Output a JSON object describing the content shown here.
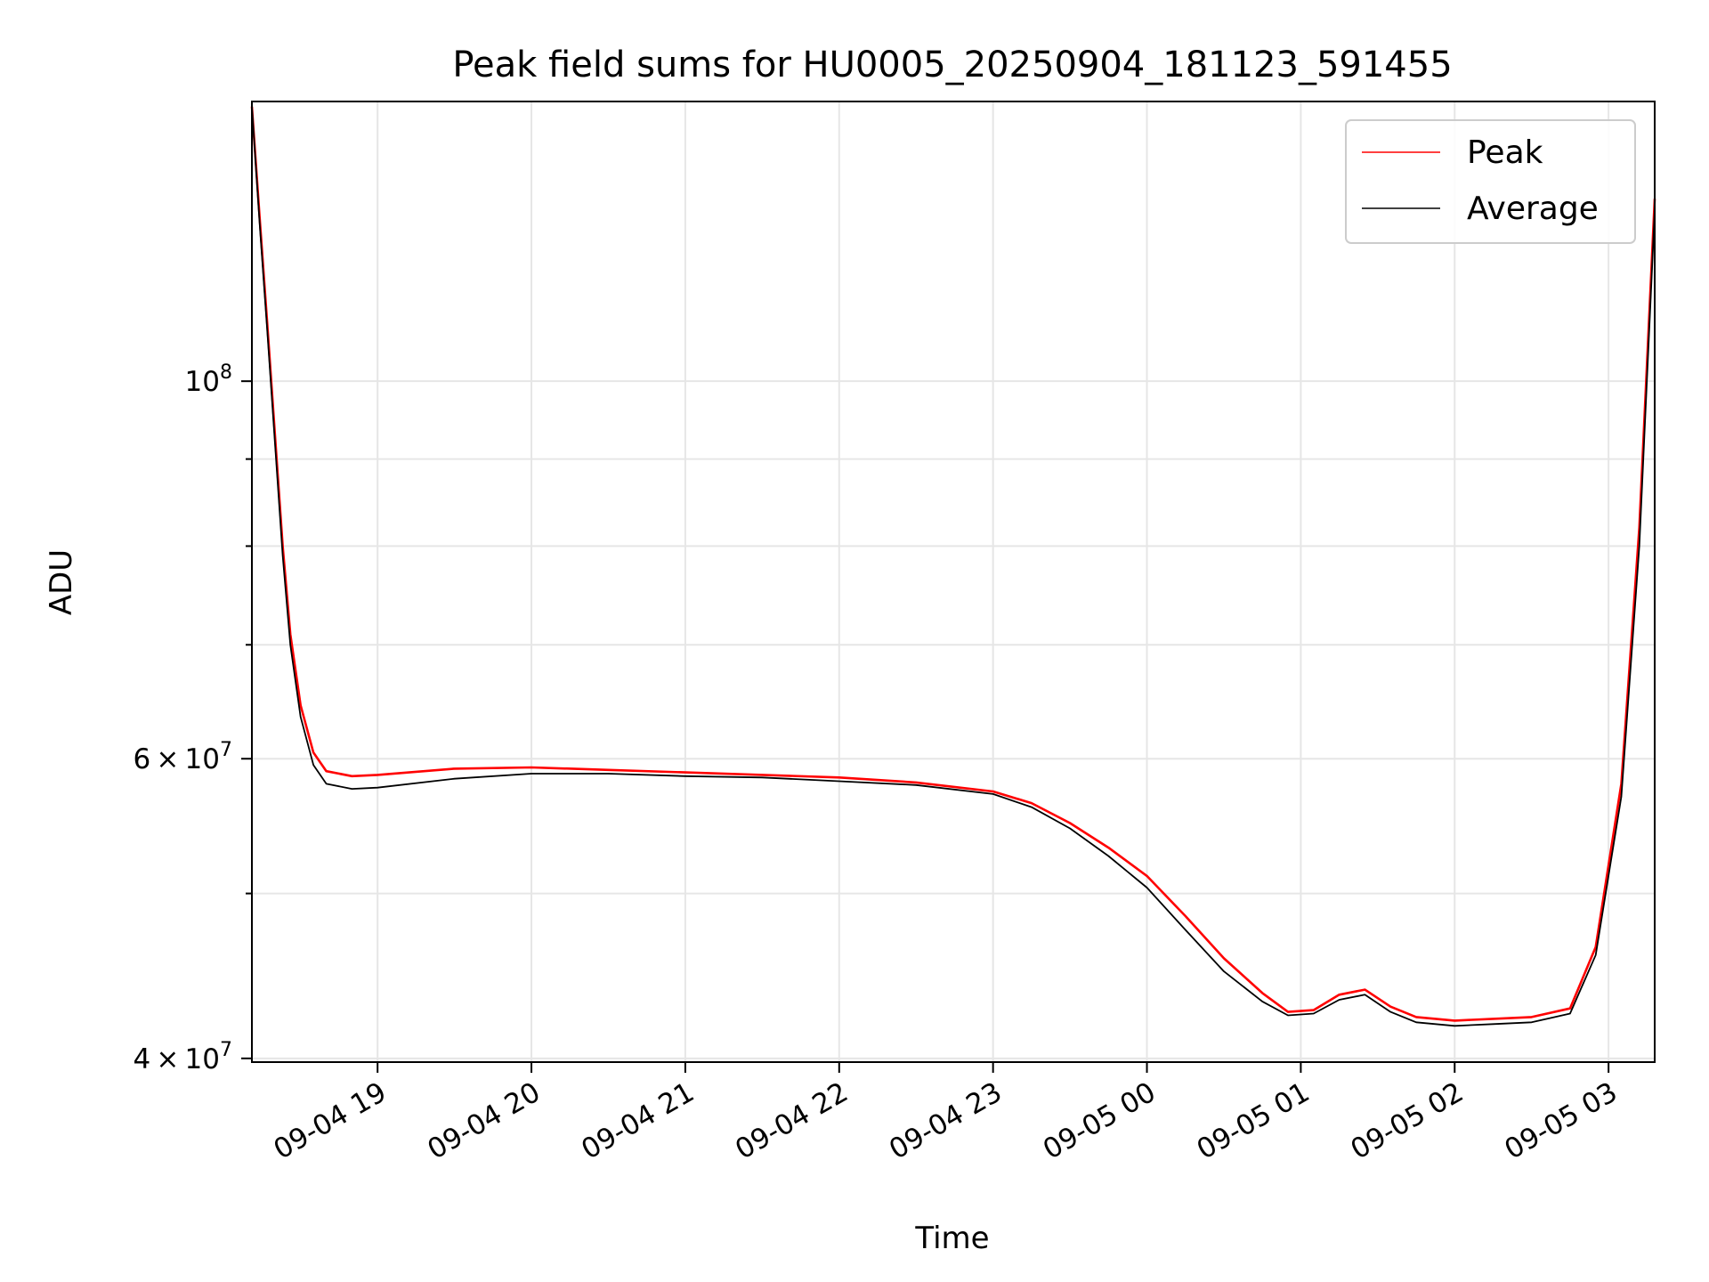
{
  "chart_data": {
    "type": "line",
    "title": "Peak field sums for HU0005_20250904_181123_591455",
    "xlabel": "Time",
    "ylabel": "ADU",
    "yscale": "log",
    "grid": true,
    "legend_position": "top-right",
    "xlim": [
      "2025-09-04 18:11",
      "2025-09-05 03:18"
    ],
    "ylim": [
      39800000,
      146000000
    ],
    "x_ticks": [
      {
        "t": "2025-09-04 19:00",
        "label": "09-04 19"
      },
      {
        "t": "2025-09-04 20:00",
        "label": "09-04 20"
      },
      {
        "t": "2025-09-04 21:00",
        "label": "09-04 21"
      },
      {
        "t": "2025-09-04 22:00",
        "label": "09-04 22"
      },
      {
        "t": "2025-09-04 23:00",
        "label": "09-04 23"
      },
      {
        "t": "2025-09-05 00:00",
        "label": "09-05 00"
      },
      {
        "t": "2025-09-05 01:00",
        "label": "09-05 01"
      },
      {
        "t": "2025-09-05 02:00",
        "label": "09-05 02"
      },
      {
        "t": "2025-09-05 03:00",
        "label": "09-05 03"
      }
    ],
    "y_major_ticks": [
      {
        "v": 100000000,
        "base": "10",
        "exp": "8",
        "mult": ""
      },
      {
        "v": 60000000,
        "base": "10",
        "exp": "7",
        "mult": "6"
      },
      {
        "v": 40000000,
        "base": "10",
        "exp": "7",
        "mult": "4"
      }
    ],
    "y_minor_ticks": [
      50000000,
      70000000,
      80000000,
      90000000
    ],
    "series": [
      {
        "name": "Peak",
        "color": "#ff0000",
        "points": [
          [
            "2025-09-04 18:11",
            145000000
          ],
          [
            "2025-09-04 18:14",
            125000000
          ],
          [
            "2025-09-04 18:17",
            108000000
          ],
          [
            "2025-09-04 18:20",
            93000000
          ],
          [
            "2025-09-04 18:23",
            80000000
          ],
          [
            "2025-09-04 18:26",
            71000000
          ],
          [
            "2025-09-04 18:30",
            64500000
          ],
          [
            "2025-09-04 18:35",
            60500000
          ],
          [
            "2025-09-04 18:40",
            59000000
          ],
          [
            "2025-09-04 18:50",
            58600000
          ],
          [
            "2025-09-04 19:00",
            58700000
          ],
          [
            "2025-09-04 19:30",
            59200000
          ],
          [
            "2025-09-04 20:00",
            59300000
          ],
          [
            "2025-09-04 20:30",
            59100000
          ],
          [
            "2025-09-04 21:00",
            58900000
          ],
          [
            "2025-09-04 21:30",
            58700000
          ],
          [
            "2025-09-04 22:00",
            58500000
          ],
          [
            "2025-09-04 22:30",
            58100000
          ],
          [
            "2025-09-04 23:00",
            57400000
          ],
          [
            "2025-09-04 23:15",
            56500000
          ],
          [
            "2025-09-04 23:30",
            55000000
          ],
          [
            "2025-09-04 23:45",
            53200000
          ],
          [
            "2025-09-05 00:00",
            51200000
          ],
          [
            "2025-09-05 00:15",
            48500000
          ],
          [
            "2025-09-05 00:30",
            45800000
          ],
          [
            "2025-09-05 00:45",
            43700000
          ],
          [
            "2025-09-05 00:55",
            42600000
          ],
          [
            "2025-09-05 01:05",
            42700000
          ],
          [
            "2025-09-05 01:15",
            43600000
          ],
          [
            "2025-09-05 01:25",
            43900000
          ],
          [
            "2025-09-05 01:35",
            42900000
          ],
          [
            "2025-09-05 01:45",
            42300000
          ],
          [
            "2025-09-05 02:00",
            42100000
          ],
          [
            "2025-09-05 02:15",
            42200000
          ],
          [
            "2025-09-05 02:30",
            42300000
          ],
          [
            "2025-09-05 02:45",
            42800000
          ],
          [
            "2025-09-05 02:55",
            46500000
          ],
          [
            "2025-09-05 03:05",
            58000000
          ],
          [
            "2025-09-05 03:12",
            82000000
          ],
          [
            "2025-09-05 03:18",
            128000000
          ]
        ]
      },
      {
        "name": "Average",
        "color": "#000000",
        "points": [
          [
            "2025-09-04 18:11",
            145000000
          ],
          [
            "2025-09-04 18:14",
            124000000
          ],
          [
            "2025-09-04 18:17",
            107000000
          ],
          [
            "2025-09-04 18:20",
            92000000
          ],
          [
            "2025-09-04 18:23",
            79000000
          ],
          [
            "2025-09-04 18:26",
            70000000
          ],
          [
            "2025-09-04 18:30",
            63500000
          ],
          [
            "2025-09-04 18:35",
            59500000
          ],
          [
            "2025-09-04 18:40",
            58000000
          ],
          [
            "2025-09-04 18:50",
            57600000
          ],
          [
            "2025-09-04 19:00",
            57700000
          ],
          [
            "2025-09-04 19:30",
            58400000
          ],
          [
            "2025-09-04 20:00",
            58800000
          ],
          [
            "2025-09-04 20:30",
            58800000
          ],
          [
            "2025-09-04 21:00",
            58600000
          ],
          [
            "2025-09-04 21:30",
            58500000
          ],
          [
            "2025-09-04 22:00",
            58200000
          ],
          [
            "2025-09-04 22:30",
            57900000
          ],
          [
            "2025-09-04 23:00",
            57200000
          ],
          [
            "2025-09-04 23:15",
            56200000
          ],
          [
            "2025-09-04 23:30",
            54600000
          ],
          [
            "2025-09-04 23:45",
            52600000
          ],
          [
            "2025-09-05 00:00",
            50400000
          ],
          [
            "2025-09-05 00:15",
            47600000
          ],
          [
            "2025-09-05 00:30",
            45000000
          ],
          [
            "2025-09-05 00:45",
            43200000
          ],
          [
            "2025-09-05 00:55",
            42400000
          ],
          [
            "2025-09-05 01:05",
            42500000
          ],
          [
            "2025-09-05 01:15",
            43300000
          ],
          [
            "2025-09-05 01:25",
            43600000
          ],
          [
            "2025-09-05 01:35",
            42600000
          ],
          [
            "2025-09-05 01:45",
            42000000
          ],
          [
            "2025-09-05 02:00",
            41800000
          ],
          [
            "2025-09-05 02:15",
            41900000
          ],
          [
            "2025-09-05 02:30",
            42000000
          ],
          [
            "2025-09-05 02:45",
            42500000
          ],
          [
            "2025-09-05 02:55",
            46000000
          ],
          [
            "2025-09-05 03:05",
            57000000
          ],
          [
            "2025-09-05 03:12",
            80000000
          ],
          [
            "2025-09-05 03:18",
            126000000
          ]
        ]
      }
    ]
  }
}
